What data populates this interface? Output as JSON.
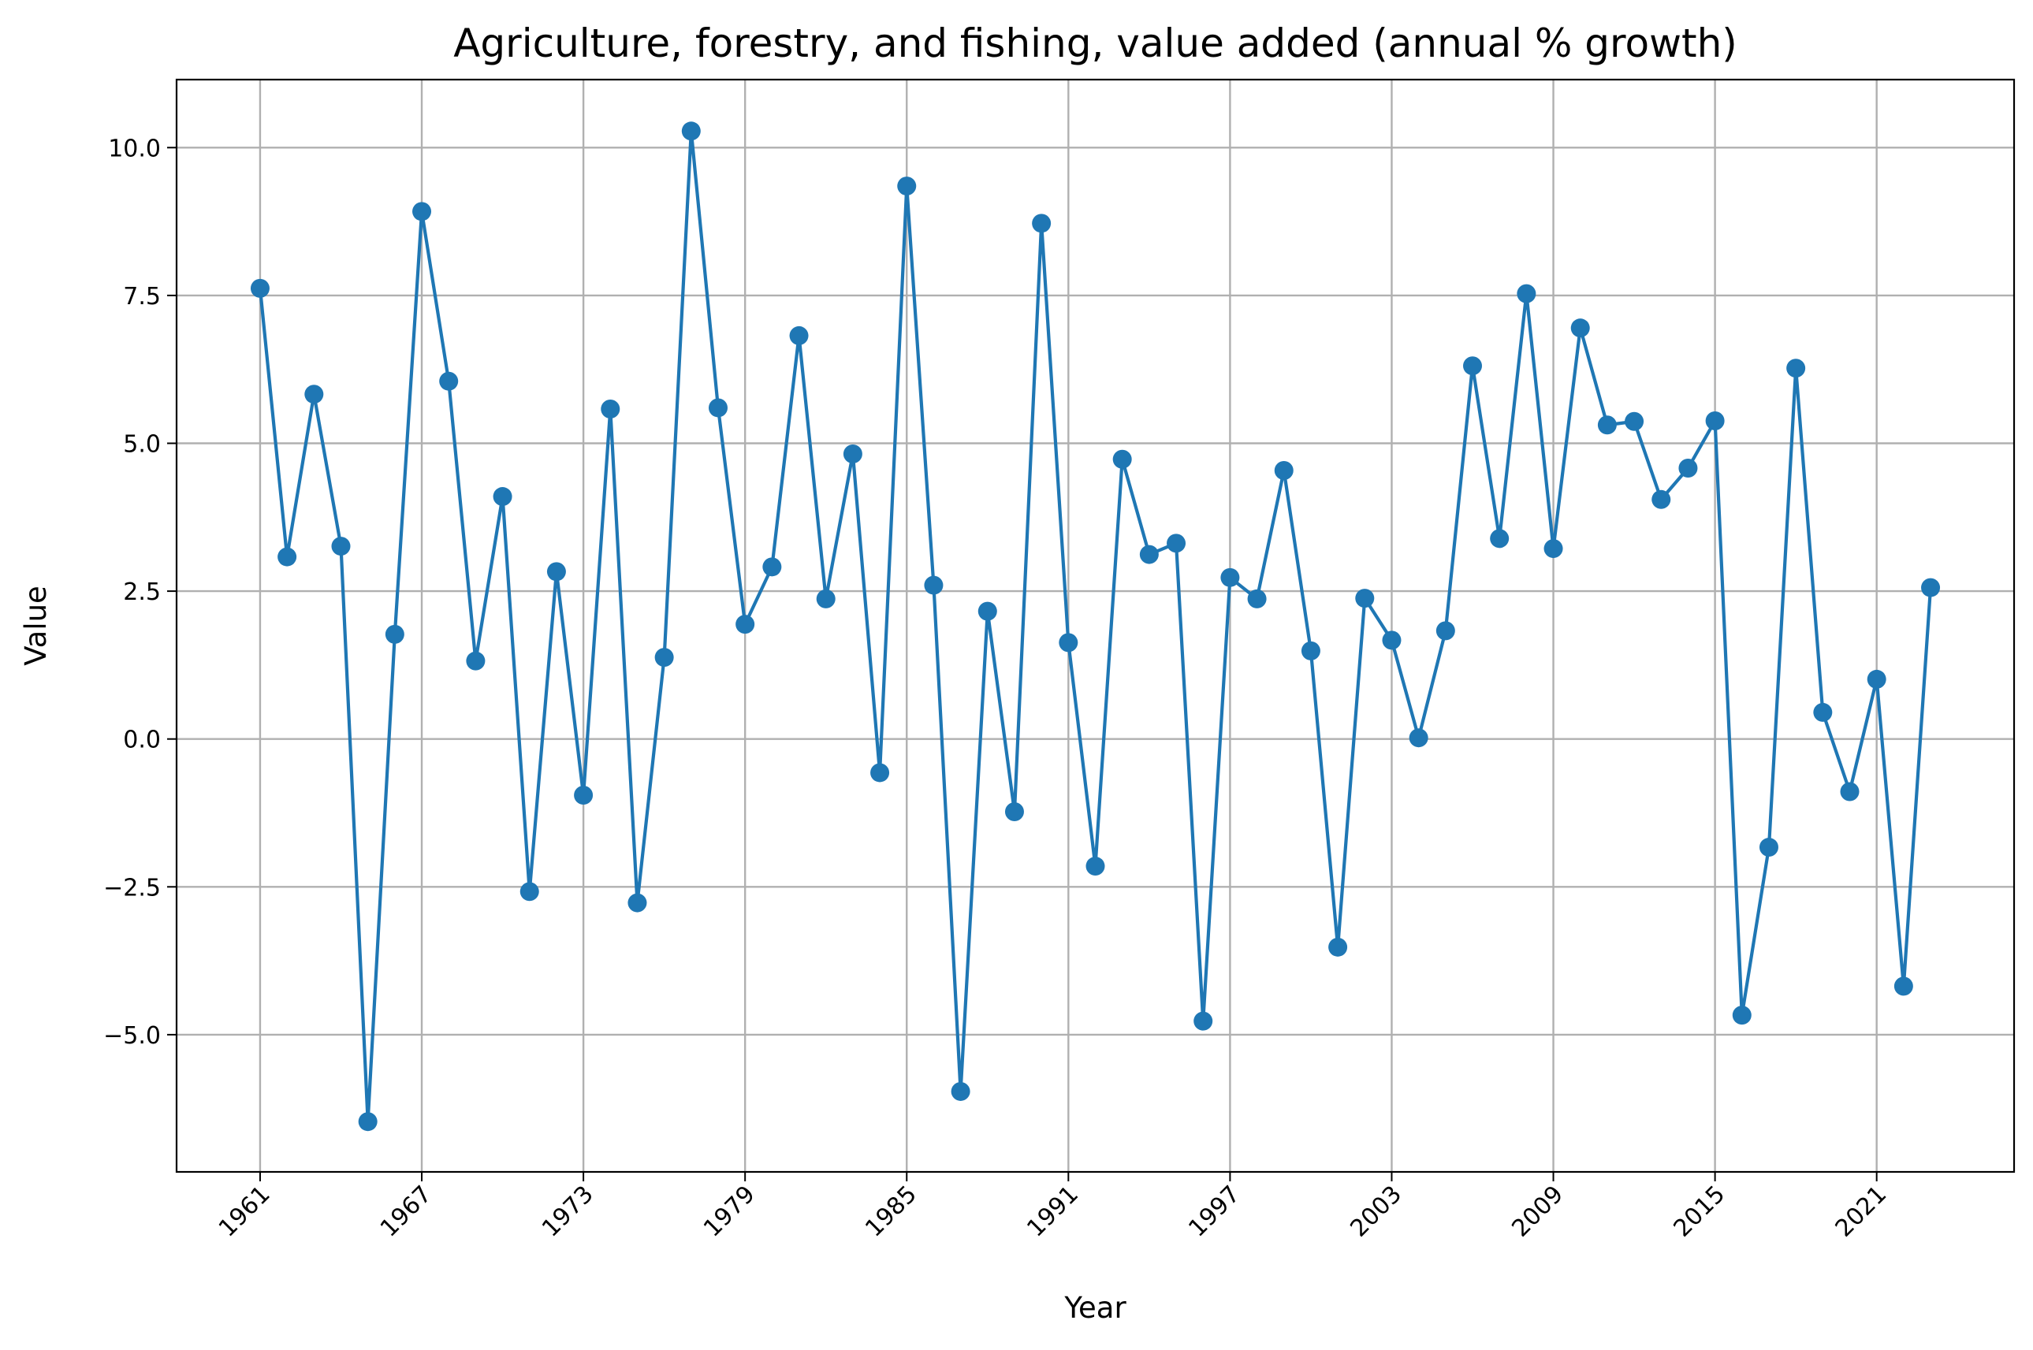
{
  "chart_data": {
    "type": "line",
    "title": "Agriculture, forestry, and fishing, value added (annual % growth)",
    "xlabel": "Year",
    "ylabel": "Value",
    "xlim": [
      1957.9,
      2026.1
    ],
    "ylim": [
      -7.32,
      11.15
    ],
    "x_ticks": [
      1961,
      1967,
      1973,
      1979,
      1985,
      1991,
      1997,
      2003,
      2009,
      2015,
      2021
    ],
    "y_ticks": [
      -5.0,
      -2.5,
      0.0,
      2.5,
      5.0,
      7.5,
      10.0
    ],
    "y_tick_labels": [
      "−5.0",
      "−2.5",
      "0.0",
      "2.5",
      "5.0",
      "7.5",
      "10.0"
    ],
    "grid": true,
    "line_color": "#1f77b4",
    "marker": "circle",
    "series": [
      {
        "x": [
          1961,
          1962,
          1963,
          1964,
          1965,
          1966,
          1967,
          1968,
          1969,
          1970,
          1971,
          1972,
          1973,
          1974,
          1975,
          1976,
          1977,
          1978,
          1979,
          1980,
          1981,
          1982,
          1983,
          1984,
          1985,
          1986,
          1987,
          1988,
          1989,
          1990,
          1991,
          1992,
          1993,
          1994,
          1995,
          1996,
          1997,
          1998,
          1999,
          2000,
          2001,
          2002,
          2003,
          2004,
          2005,
          2006,
          2007,
          2008,
          2009,
          2010,
          2011,
          2012,
          2013,
          2014,
          2015,
          2016,
          2017,
          2018,
          2019,
          2020,
          2021,
          2022,
          2023
        ],
        "values": [
          7.62,
          3.08,
          5.83,
          3.26,
          -6.47,
          1.77,
          8.92,
          6.05,
          1.32,
          4.1,
          -2.58,
          2.83,
          -0.95,
          5.58,
          -2.77,
          1.38,
          10.28,
          5.6,
          1.94,
          2.91,
          6.82,
          2.37,
          4.82,
          -0.57,
          9.35,
          2.6,
          -5.96,
          2.16,
          -1.23,
          8.72,
          1.63,
          -2.15,
          4.73,
          3.12,
          3.31,
          -4.77,
          2.73,
          2.37,
          4.54,
          1.49,
          -3.52,
          2.38,
          1.67,
          0.02,
          1.83,
          6.31,
          3.39,
          7.53,
          3.22,
          6.95,
          5.31,
          5.37,
          4.05,
          4.58,
          5.38,
          -4.67,
          -1.83,
          6.27,
          0.45,
          -0.89,
          1.01,
          -4.18,
          2.56
        ]
      }
    ]
  }
}
